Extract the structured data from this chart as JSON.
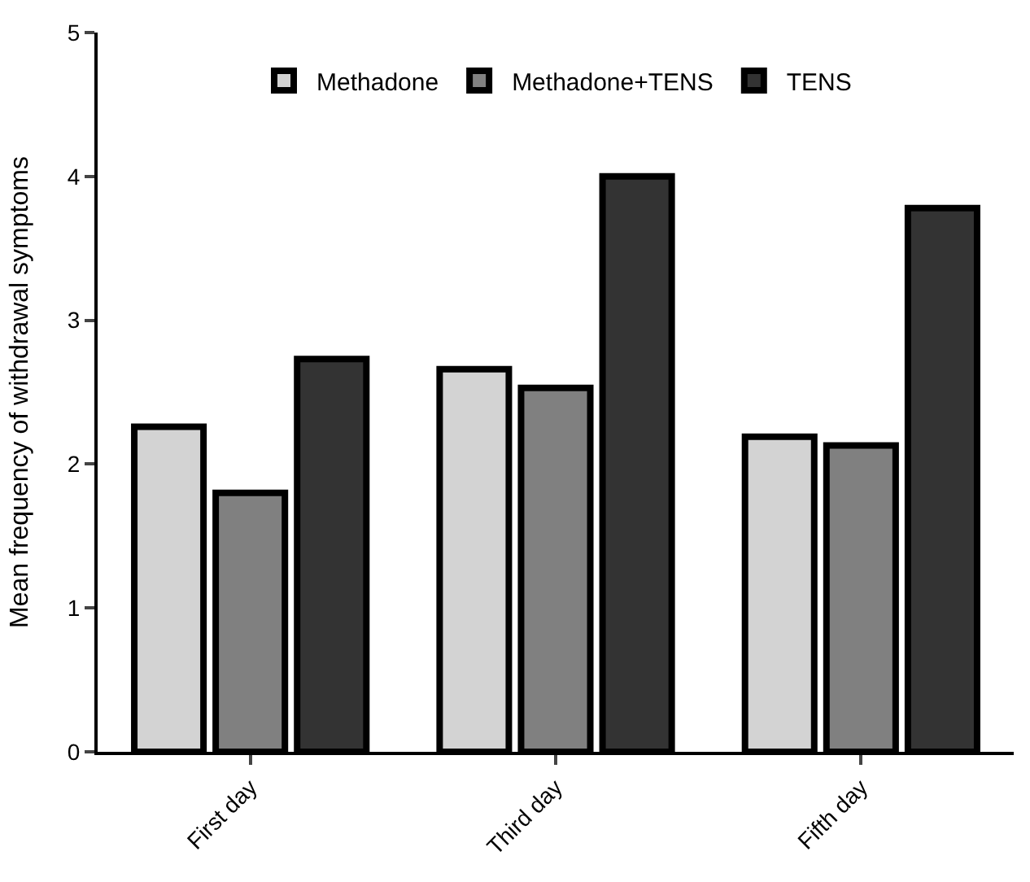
{
  "chart_data": {
    "type": "bar",
    "ylabel": "Mean frequency of withdrawal symptoms",
    "categories": [
      "First day",
      "Third day",
      "Fifth day"
    ],
    "series": [
      {
        "name": "Methadone",
        "color": "#d3d3d3",
        "values": [
          2.26,
          2.66,
          2.19
        ]
      },
      {
        "name": "Methadone+TENS",
        "color": "#808080",
        "values": [
          1.8,
          2.53,
          2.13
        ]
      },
      {
        "name": "TENS",
        "color": "#333333",
        "values": [
          2.73,
          4.0,
          3.78
        ]
      }
    ],
    "ylim": [
      0,
      5
    ],
    "yticks": [
      0,
      1,
      2,
      3,
      4,
      5
    ],
    "grid": false,
    "legend": "top"
  }
}
